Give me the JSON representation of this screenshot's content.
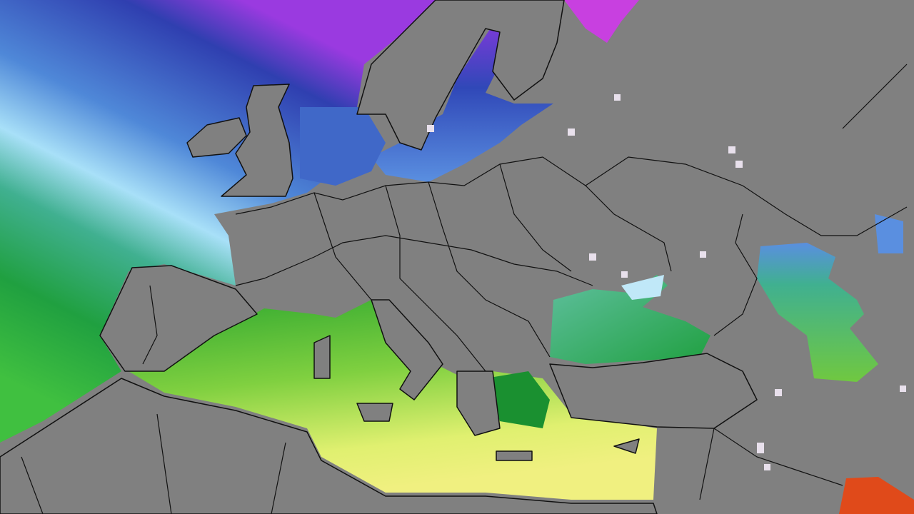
{
  "map": {
    "land_color": "#808080",
    "border_color": "#111111",
    "palette": {
      "very_cold": "#c040e0",
      "cold": "#3b4fc0",
      "cool": "#5a8fe0",
      "mild": "#a8e0f8",
      "teal": "#40b080",
      "green": "#20a030",
      "light_green": "#80d040",
      "yellow": "#e8f070",
      "warm": "#e05020"
    }
  }
}
